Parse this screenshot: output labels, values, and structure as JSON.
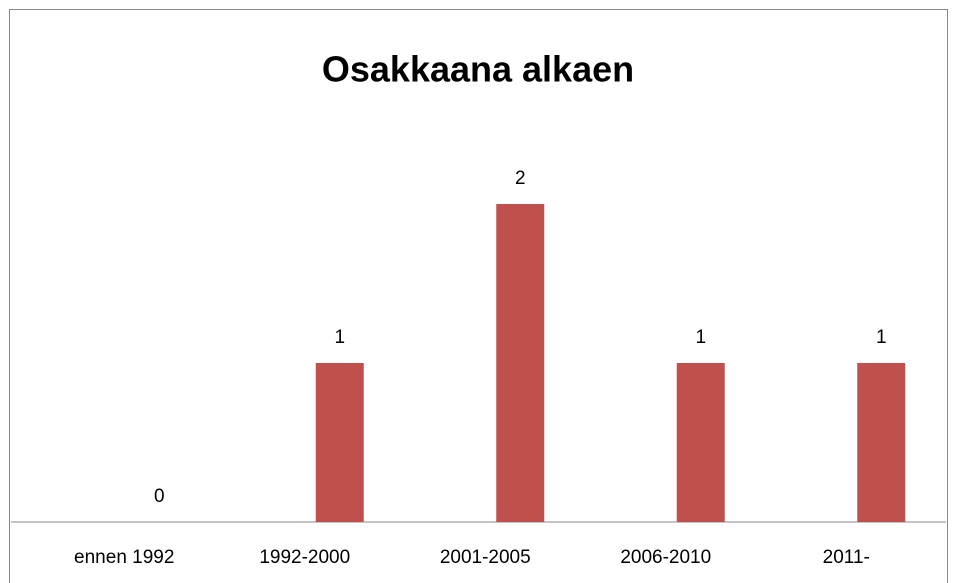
{
  "chart_data": {
    "type": "bar",
    "title": "Osakkaana alkaen",
    "categories": [
      "ennen 1992",
      "1992-2000",
      "2001-2005",
      "2006-2010",
      "2011-"
    ],
    "values": [
      0,
      1,
      2,
      1,
      1
    ],
    "color": "#c0504d",
    "ylim": [
      0,
      2
    ]
  }
}
